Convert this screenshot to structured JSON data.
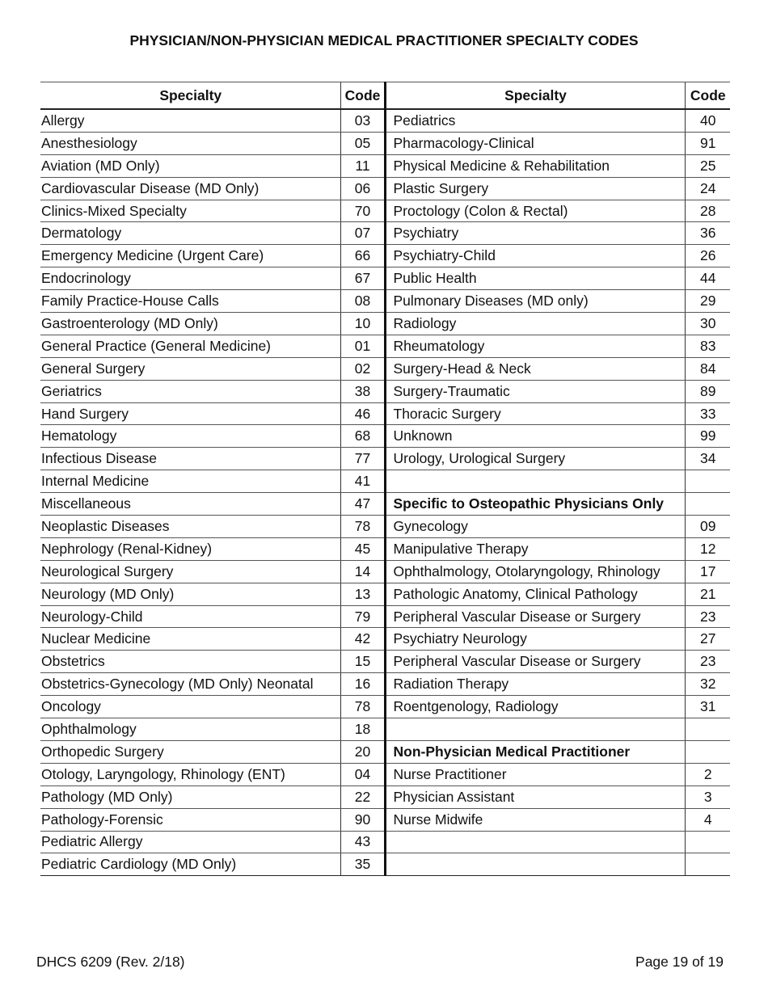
{
  "title": "PHYSICIAN/NON-PHYSICIAN MEDICAL PRACTITIONER SPECIALTY CODES",
  "table": {
    "header": [
      "Specialty",
      "Code",
      "Specialty",
      "Code"
    ],
    "rows": [
      [
        "Allergy",
        "03",
        "Pediatrics",
        "40"
      ],
      [
        "Anesthesiology",
        "05",
        "Pharmacology-Clinical",
        "91"
      ],
      [
        "Aviation (MD Only)",
        "11",
        "Physical Medicine & Rehabilitation",
        "25"
      ],
      [
        "Cardiovascular Disease (MD Only)",
        "06",
        "Plastic Surgery",
        "24"
      ],
      [
        "Clinics-Mixed Specialty",
        "70",
        "Proctology (Colon & Rectal)",
        "28"
      ],
      [
        "Dermatology",
        "07",
        "Psychiatry",
        "36"
      ],
      [
        "Emergency Medicine (Urgent Care)",
        "66",
        "Psychiatry-Child",
        "26"
      ],
      [
        "Endocrinology",
        "67",
        "Public Health",
        "44"
      ],
      [
        "Family Practice-House Calls",
        "08",
        "Pulmonary Diseases (MD only)",
        "29"
      ],
      [
        "Gastroenterology (MD Only)",
        "10",
        "Radiology",
        "30"
      ],
      [
        "General Practice (General Medicine)",
        "01",
        "Rheumatology",
        "83"
      ],
      [
        "General Surgery",
        "02",
        "Surgery-Head & Neck",
        "84"
      ],
      [
        "Geriatrics",
        "38",
        "Surgery-Traumatic",
        "89"
      ],
      [
        "Hand Surgery",
        "46",
        "Thoracic Surgery",
        "33"
      ],
      [
        "Hematology",
        "68",
        "Unknown",
        "99"
      ],
      [
        "Infectious Disease",
        "77",
        "Urology, Urological Surgery",
        "34"
      ],
      [
        "Internal Medicine",
        "41",
        null,
        null
      ],
      [
        "Miscellaneous",
        "47",
        {
          "heading": "Specific to Osteopathic Physicians Only"
        },
        null
      ],
      [
        "Neoplastic Diseases",
        "78",
        "Gynecology",
        "09"
      ],
      [
        "Nephrology (Renal-Kidney)",
        "45",
        "Manipulative Therapy",
        "12"
      ],
      [
        "Neurological Surgery",
        "14",
        "Ophthalmology, Otolaryngology, Rhinology",
        "17"
      ],
      [
        "Neurology (MD Only)",
        "13",
        "Pathologic Anatomy, Clinical Pathology",
        "21"
      ],
      [
        "Neurology-Child",
        "79",
        "Peripheral Vascular Disease or Surgery",
        "23"
      ],
      [
        "Nuclear Medicine",
        "42",
        "Psychiatry Neurology",
        "27"
      ],
      [
        "Obstetrics",
        "15",
        "Peripheral Vascular Disease or Surgery",
        "23"
      ],
      [
        "Obstetrics-Gynecology (MD Only) Neonatal",
        "16",
        "Radiation Therapy",
        "32"
      ],
      [
        "Oncology",
        "78",
        "Roentgenology, Radiology",
        "31"
      ],
      [
        "Ophthalmology",
        "18",
        null,
        null
      ],
      [
        "Orthopedic Surgery",
        "20",
        {
          "heading": "Non-Physician Medical Practitioner"
        },
        null
      ],
      [
        "Otology, Laryngology, Rhinology (ENT)",
        "04",
        "Nurse Practitioner",
        "2"
      ],
      [
        "Pathology (MD Only)",
        "22",
        "Physician Assistant",
        "3"
      ],
      [
        "Pathology-Forensic",
        "90",
        "Nurse Midwife",
        "4"
      ],
      [
        "Pediatric Allergy",
        "43",
        null,
        null
      ],
      [
        "Pediatric Cardiology (MD Only)",
        "35",
        null,
        null
      ]
    ]
  },
  "footer": {
    "form": "DHCS 6209 (Rev. 2/18)",
    "page": "Page 19 of 19"
  }
}
